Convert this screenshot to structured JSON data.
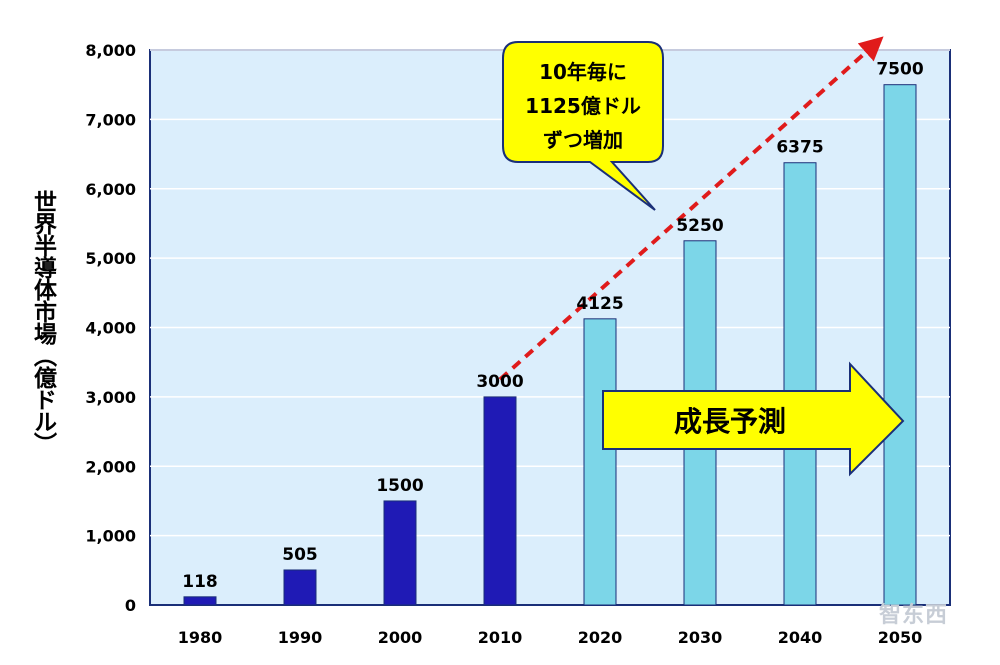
{
  "chart_data": {
    "type": "bar",
    "title": "",
    "xlabel": "",
    "ylabel": "世界半導体市場（億ドル）",
    "categories": [
      "1980",
      "1990",
      "2000",
      "2010",
      "2020",
      "2030",
      "2040",
      "2050"
    ],
    "series": [
      {
        "name": "",
        "values": [
          118,
          505,
          1500,
          3000,
          4125,
          5250,
          6375,
          7500
        ]
      }
    ],
    "data_labels": [
      "118",
      "505",
      "1500",
      "3000",
      "4125",
      "5250",
      "6375",
      "7500"
    ],
    "ylim": [
      0,
      8000
    ],
    "y_ticks": [
      0,
      1000,
      2000,
      3000,
      4000,
      5000,
      6000,
      7000,
      8000
    ],
    "y_tick_labels": [
      "0",
      "1,000",
      "2,000",
      "3,000",
      "4,000",
      "5,000",
      "6,000",
      "7,000",
      "8,000"
    ],
    "grid": true,
    "colors": {
      "actual_bars": "#1f1ab5",
      "forecast_bars": "#7cd6e8",
      "plot_background": "#dbeefc",
      "trend_line": "#e01b1b",
      "callout_fill": "#ffff00",
      "arrow_fill": "#ffff00",
      "border": "#1a2f78"
    },
    "actual_count": 4,
    "forecast_label": "成長予測",
    "callout_lines": [
      "10年毎に",
      "1125億ドル",
      "ずつ増加"
    ],
    "trend_line": {
      "style": "dashed",
      "from": {
        "x": "2010",
        "y": 3900
      },
      "to": {
        "x": "2050",
        "y": 8150
      }
    }
  },
  "watermark": "智东西"
}
